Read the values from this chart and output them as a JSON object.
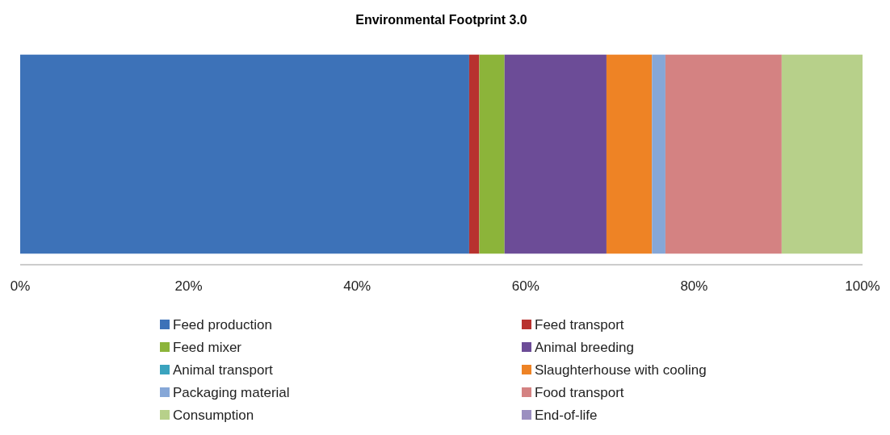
{
  "chart_data": {
    "type": "bar",
    "title": "Environmental Footprint 3.0",
    "orientation": "horizontal",
    "stacked": true,
    "categories": [
      null
    ],
    "xlim": [
      0,
      100
    ],
    "xticks": [
      {
        "value": 0,
        "label": "0%"
      },
      {
        "value": 20,
        "label": "20%"
      },
      {
        "value": 40,
        "label": "40%"
      },
      {
        "value": 60,
        "label": "60%"
      },
      {
        "value": 80,
        "label": "80%"
      },
      {
        "value": 100,
        "label": "100%"
      }
    ],
    "legend": "bottom",
    "series": [
      {
        "name": "Feed production",
        "color": "#3d72b8",
        "values": [
          53.3
        ]
      },
      {
        "name": "Feed transport",
        "color": "#b8322f",
        "values": [
          1.2
        ]
      },
      {
        "name": "Feed mixer",
        "color": "#8cb43a",
        "values": [
          3.0
        ]
      },
      {
        "name": "Animal breeding",
        "color": "#6c4c97",
        "values": [
          12.1
        ]
      },
      {
        "name": "Animal transport",
        "color": "#3aa3be",
        "values": [
          0
        ]
      },
      {
        "name": "Slaughterhouse with cooling",
        "color": "#ee8325",
        "values": [
          5.4
        ]
      },
      {
        "name": "Packaging material",
        "color": "#86a7d7",
        "values": [
          1.6
        ]
      },
      {
        "name": "Food transport",
        "color": "#d48282",
        "values": [
          13.8
        ]
      },
      {
        "name": "Consumption",
        "color": "#b7d08a",
        "values": [
          9.6
        ]
      },
      {
        "name": "End-of-life",
        "color": "#9b8fc0",
        "values": [
          0
        ]
      }
    ]
  }
}
